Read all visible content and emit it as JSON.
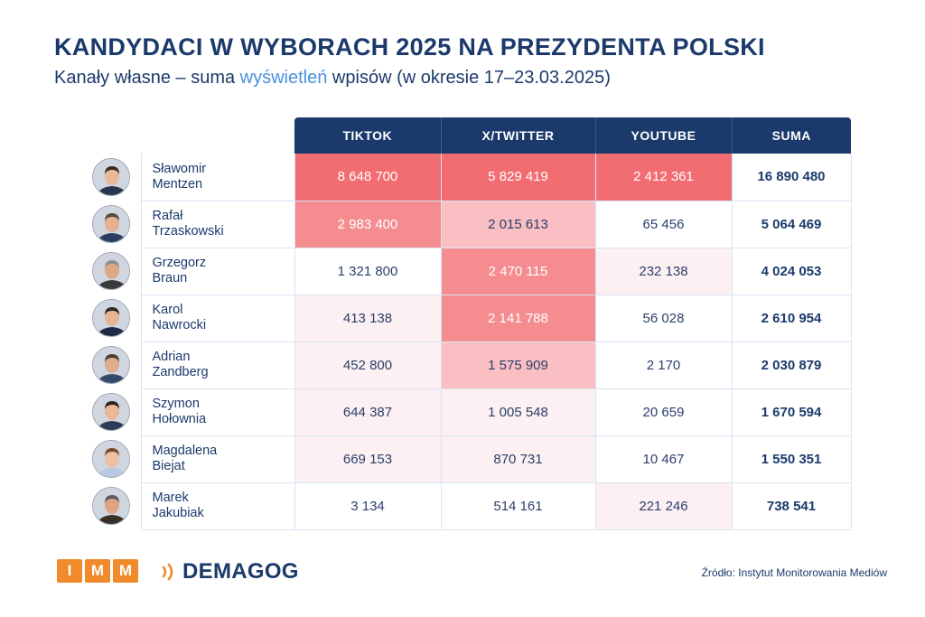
{
  "title": "KANDYDACI W WYBORACH 2025 NA PREZYDENTA POLSKI",
  "subtitle": {
    "before": "Kanały własne – suma ",
    "highlight": "wyświetleń",
    "after": " wpisów (w okresie 17–23.03.2025)"
  },
  "colors": {
    "header_bg": "#1b3a6b",
    "accent": "#4a8fe0",
    "heat_scale": [
      "#ffffff",
      "#fcf0f2",
      "#f9bfc2",
      "#f58d90",
      "#f26d72"
    ],
    "imm_orange": "#f08a2a"
  },
  "chart_data": {
    "type": "table",
    "title": "KANDYDACI W WYBORACH 2025 NA PREZYDENTA POLSKI",
    "subtitle": "Kanały własne – suma wyświetleń wpisów (w okresie 17–23.03.2025)",
    "columns": [
      "TIKTOK",
      "X/TWITTER",
      "YOUTUBE",
      "SUMA"
    ],
    "rows": [
      {
        "first": "Sławomir",
        "last": "Mentzen",
        "avatar": "avatar-mentzen",
        "values": [
          "8 648 700",
          "5 829 419",
          "2 412 361",
          "16 890 480"
        ],
        "shade": [
          4,
          4,
          4
        ]
      },
      {
        "first": "Rafał",
        "last": "Trzaskowski",
        "avatar": "avatar-trzaskowski",
        "values": [
          "2 983 400",
          "2 015 613",
          "65 456",
          "5 064 469"
        ],
        "shade": [
          3,
          2,
          0
        ]
      },
      {
        "first": "Grzegorz",
        "last": "Braun",
        "avatar": "avatar-braun",
        "values": [
          "1 321 800",
          "2 470 115",
          "232 138",
          "4 024 053"
        ],
        "shade": [
          0,
          3,
          1
        ]
      },
      {
        "first": "Karol",
        "last": "Nawrocki",
        "avatar": "avatar-nawrocki",
        "values": [
          "413 138",
          "2 141 788",
          "56 028",
          "2 610 954"
        ],
        "shade": [
          1,
          3,
          0
        ]
      },
      {
        "first": "Adrian",
        "last": "Zandberg",
        "avatar": "avatar-zandberg",
        "values": [
          "452 800",
          "1 575 909",
          "2 170",
          "2 030 879"
        ],
        "shade": [
          1,
          2,
          0
        ]
      },
      {
        "first": "Szymon",
        "last": "Hołownia",
        "avatar": "avatar-holownia",
        "values": [
          "644 387",
          "1 005 548",
          "20 659",
          "1 670 594"
        ],
        "shade": [
          1,
          1,
          0
        ]
      },
      {
        "first": "Magdalena",
        "last": "Biejat",
        "avatar": "avatar-biejat",
        "values": [
          "669 153",
          "870 731",
          "10 467",
          "1 550 351"
        ],
        "shade": [
          1,
          1,
          0
        ]
      },
      {
        "first": "Marek",
        "last": "Jakubiak",
        "avatar": "avatar-jakubiak",
        "values": [
          "3 134",
          "514 161",
          "221 246",
          "738 541"
        ],
        "shade": [
          0,
          0,
          1
        ]
      }
    ]
  },
  "footer": {
    "imm_letters": [
      "I",
      "M",
      "M"
    ],
    "demagog": "DEMAGOG",
    "source": "Źródło: Instytut Monitorowania Mediów"
  }
}
